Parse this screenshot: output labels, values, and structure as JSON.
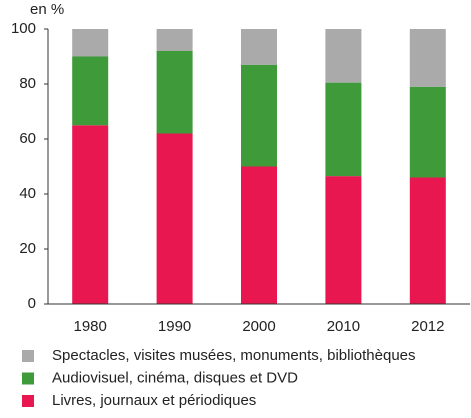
{
  "chart_data": {
    "type": "stacked_bar",
    "y_label": "en %",
    "categories": [
      "1980",
      "1990",
      "2000",
      "2010",
      "2012"
    ],
    "series": [
      {
        "name": "Livres, journaux et périodiques",
        "color": "#e8174f",
        "values": [
          65,
          62,
          50,
          46.5,
          46
        ]
      },
      {
        "name": "Audiovisuel, cinéma, disques et DVD",
        "color": "#3f9a3a",
        "values": [
          25,
          30,
          37,
          34,
          33
        ]
      },
      {
        "name": "Spectacles, visites musées, monuments, bibliothèques",
        "color": "#aaaaaa",
        "values": [
          10,
          8,
          13,
          19.5,
          21
        ]
      }
    ],
    "ylim": [
      0,
      100
    ],
    "yticks": [
      0,
      20,
      40,
      60,
      80,
      100
    ],
    "grid": false
  }
}
